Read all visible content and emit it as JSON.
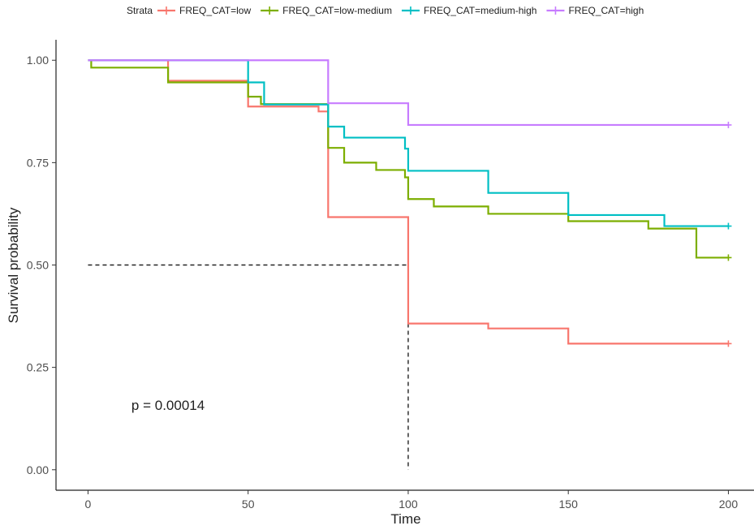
{
  "chart_data": {
    "type": "line",
    "subtype": "kaplan-meier-step",
    "xlabel": "Time",
    "ylabel": "Survival probability",
    "xlim": [
      -10,
      208
    ],
    "ylim": [
      -0.05,
      1.05
    ],
    "x_ticks": [
      0,
      50,
      100,
      150,
      200
    ],
    "y_ticks": [
      0.0,
      0.25,
      0.5,
      0.75,
      1.0
    ],
    "x_tick_labels": [
      "0",
      "50",
      "100",
      "150",
      "200"
    ],
    "y_tick_labels": [
      "0.00",
      "0.25",
      "0.50",
      "0.75",
      "1.00"
    ],
    "grid": false,
    "legend": {
      "title": "Strata",
      "position": "top"
    },
    "series": [
      {
        "name": "FREQ_CAT=low",
        "color": "#F8766D",
        "steps": [
          [
            0,
            1.0
          ],
          [
            25,
            0.95
          ],
          [
            50,
            0.887
          ],
          [
            72,
            0.875
          ],
          [
            75,
            0.617
          ],
          [
            100,
            0.357
          ],
          [
            125,
            0.345
          ],
          [
            150,
            0.308
          ],
          [
            200,
            0.308
          ]
        ],
        "censored": [
          [
            200,
            0.308
          ]
        ]
      },
      {
        "name": "FREQ_CAT=low-medium",
        "color": "#7CAE00",
        "steps": [
          [
            0,
            1.0
          ],
          [
            1,
            0.982
          ],
          [
            25,
            0.946
          ],
          [
            50,
            0.911
          ],
          [
            54,
            0.893
          ],
          [
            75,
            0.786
          ],
          [
            80,
            0.75
          ],
          [
            90,
            0.732
          ],
          [
            99,
            0.714
          ],
          [
            100,
            0.661
          ],
          [
            108,
            0.643
          ],
          [
            125,
            0.625
          ],
          [
            150,
            0.607
          ],
          [
            175,
            0.589
          ],
          [
            190,
            0.518
          ],
          [
            200,
            0.518
          ]
        ],
        "censored": [
          [
            200,
            0.518
          ]
        ]
      },
      {
        "name": "FREQ_CAT=medium-high",
        "color": "#00BFC4",
        "steps": [
          [
            0,
            1.0
          ],
          [
            50,
            0.946
          ],
          [
            55,
            0.892
          ],
          [
            75,
            0.838
          ],
          [
            80,
            0.811
          ],
          [
            99,
            0.784
          ],
          [
            100,
            0.73
          ],
          [
            125,
            0.676
          ],
          [
            150,
            0.622
          ],
          [
            180,
            0.595
          ],
          [
            200,
            0.595
          ]
        ],
        "censored": [
          [
            200,
            0.595
          ]
        ]
      },
      {
        "name": "FREQ_CAT=high",
        "color": "#C77CFF",
        "steps": [
          [
            0,
            1.0
          ],
          [
            75,
            0.895
          ],
          [
            100,
            0.842
          ],
          [
            200,
            0.842
          ]
        ],
        "censored": [
          [
            200,
            0.842
          ]
        ]
      }
    ],
    "median_reference": {
      "y": 0.5,
      "x": 100
    },
    "annotations": [
      {
        "text": "p = 0.00014",
        "x": 25,
        "y": 0.146
      }
    ]
  }
}
